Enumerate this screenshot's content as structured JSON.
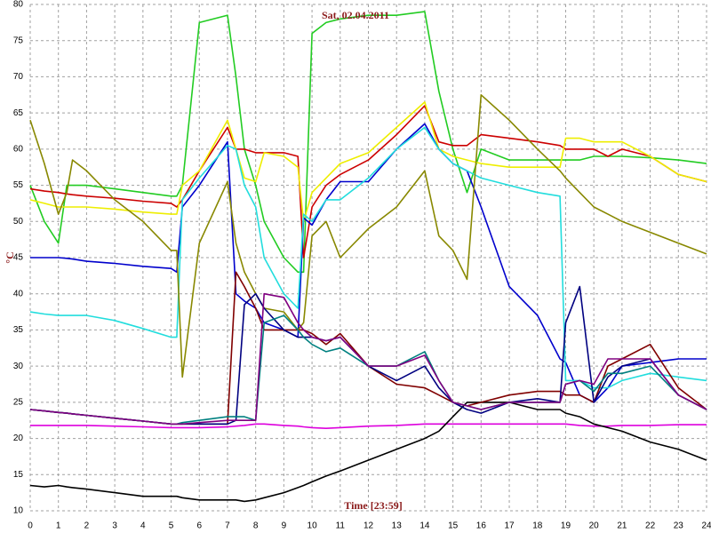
{
  "chart_data": {
    "type": "line",
    "title": "Sat, 02.04.2011",
    "x_label": "Time [23:59]",
    "y_label": "°C",
    "grid": true,
    "xlim": [
      0,
      24
    ],
    "xticks": [
      0,
      1,
      2,
      3,
      4,
      5,
      6,
      7,
      8,
      9,
      10,
      11,
      12,
      13,
      14,
      15,
      16,
      17,
      18,
      19,
      20,
      21,
      22,
      23,
      24
    ],
    "ylim": [
      10,
      80
    ],
    "yticks": [
      10,
      15,
      20,
      25,
      30,
      35,
      40,
      45,
      50,
      55,
      60,
      65,
      70,
      75,
      80
    ],
    "x": [
      0,
      0.5,
      1,
      1.3,
      1.5,
      2,
      3,
      4,
      5,
      5.2,
      5.4,
      6,
      7,
      7.3,
      7.6,
      8,
      8.3,
      9,
      9.5,
      9.7,
      10,
      10.5,
      11,
      12,
      13,
      14,
      14.5,
      15,
      15.5,
      16,
      17,
      18,
      18.8,
      19,
      19.5,
      20,
      20.5,
      21,
      22,
      23,
      24
    ],
    "series": [
      {
        "color": "#22cc22",
        "values": [
          55,
          50,
          47,
          55,
          55,
          55,
          54.5,
          54,
          53.5,
          53.5,
          55,
          77.5,
          78.5,
          70,
          60,
          55,
          50,
          45,
          43,
          43,
          76,
          77.5,
          78,
          78.5,
          78.5,
          79,
          68,
          60,
          54,
          60,
          58.5,
          58.5,
          58.5,
          58.5,
          58.5,
          59,
          59,
          59,
          58.8,
          58.5,
          58
        ]
      },
      {
        "color": "#cc0000",
        "values": [
          54.5,
          54.2,
          54,
          53.8,
          53.7,
          53.5,
          53.2,
          52.8,
          52.5,
          52,
          53,
          57,
          63,
          60,
          60,
          59.5,
          59.5,
          59.5,
          59,
          45,
          52,
          55,
          56.5,
          58.5,
          62,
          66,
          61,
          60.5,
          60.5,
          62,
          61.5,
          61,
          60.5,
          60,
          60,
          60,
          59,
          60,
          59,
          56.5,
          55.5
        ]
      },
      {
        "color": "#eeee00",
        "values": [
          53,
          52.5,
          52,
          52,
          52,
          52,
          51.7,
          51.3,
          51,
          51,
          55,
          57,
          64,
          60,
          56,
          55.5,
          59.5,
          59,
          57.5,
          50,
          54,
          56,
          58,
          59.5,
          63,
          66.5,
          60,
          59,
          58.5,
          58,
          57.5,
          57.5,
          57.5,
          61.5,
          61.5,
          61,
          61,
          61,
          59,
          56.5,
          55.5
        ]
      },
      {
        "color": "#0000cc",
        "values": [
          45,
          45,
          45,
          44.9,
          44.8,
          44.5,
          44.2,
          43.8,
          43.5,
          43,
          52,
          55,
          61,
          40,
          39,
          38,
          36,
          35,
          34,
          50.5,
          49.5,
          53,
          55.5,
          55.5,
          60,
          63.5,
          60,
          58,
          57,
          52,
          41,
          37,
          31,
          30.5,
          26,
          25,
          27,
          30,
          30.5,
          31,
          31
        ]
      },
      {
        "color": "#22dddd",
        "values": [
          37.5,
          37.2,
          37,
          37,
          37,
          37,
          36.3,
          35.2,
          34,
          34,
          53,
          56,
          60.5,
          60,
          55,
          52,
          45,
          40,
          38,
          51,
          50,
          53,
          53,
          56,
          60,
          63,
          60,
          58,
          57,
          56,
          55,
          54,
          53.5,
          28,
          28,
          27,
          27,
          28,
          29,
          28.5,
          28
        ]
      },
      {
        "color": "#888800",
        "values": [
          64,
          58,
          51,
          54,
          58.5,
          57,
          53,
          50,
          46,
          46,
          28.5,
          47,
          55.5,
          47,
          43,
          40,
          38,
          37.5,
          35,
          36,
          48,
          50,
          45,
          49,
          52,
          57,
          48,
          46,
          42,
          67.5,
          64,
          60,
          57,
          56,
          54,
          52,
          51,
          50,
          48.5,
          47,
          45.5
        ]
      },
      {
        "color": "#dd00dd",
        "values": [
          21.8,
          21.8,
          21.8,
          21.8,
          21.8,
          21.8,
          21.7,
          21.6,
          21.5,
          21.5,
          21.5,
          21.5,
          21.6,
          21.7,
          21.8,
          22,
          22,
          21.8,
          21.7,
          21.6,
          21.5,
          21.4,
          21.5,
          21.7,
          21.8,
          22,
          22,
          22,
          22,
          22,
          22,
          22,
          22,
          22,
          21.8,
          21.7,
          21.7,
          21.8,
          21.8,
          21.9,
          21.9
        ]
      },
      {
        "color": "#000000",
        "values": [
          13.5,
          13.3,
          13.5,
          13.3,
          13.2,
          13,
          12.5,
          12,
          12,
          12,
          11.8,
          11.5,
          11.5,
          11.5,
          11.3,
          11.5,
          11.8,
          12.5,
          13.2,
          13.5,
          14,
          14.8,
          15.5,
          17,
          18.5,
          20,
          21,
          23,
          25,
          25,
          25,
          24,
          24,
          23.5,
          23,
          22,
          21.5,
          21,
          19.5,
          18.5,
          17
        ]
      },
      {
        "color": "#800000",
        "values": [
          24,
          23.8,
          23.6,
          23.5,
          23.4,
          23.2,
          22.8,
          22.4,
          22,
          22,
          22,
          22,
          22,
          43,
          41,
          38,
          35,
          35,
          35,
          35,
          34.5,
          33,
          34.5,
          30,
          27.5,
          27,
          26,
          25,
          24.5,
          25,
          26,
          26.5,
          26.5,
          26,
          26,
          25,
          30,
          31,
          33,
          27,
          24
        ]
      },
      {
        "color": "#000080",
        "values": [
          24,
          23.8,
          23.6,
          23.5,
          23.4,
          23.2,
          22.8,
          22.4,
          22,
          22,
          22,
          22,
          22,
          22.5,
          38.5,
          40,
          38,
          35,
          34,
          34,
          34,
          33.5,
          34,
          30,
          28,
          30,
          27,
          25,
          24,
          23.5,
          25,
          25.5,
          25,
          36,
          41,
          25,
          28.5,
          30,
          31,
          26,
          24
        ]
      },
      {
        "color": "#008080",
        "values": [
          24,
          23.8,
          23.6,
          23.5,
          23.4,
          23.2,
          22.8,
          22.4,
          22,
          22,
          22.2,
          22.5,
          23,
          23,
          23,
          22.5,
          36,
          37,
          35,
          34,
          33,
          32,
          32.5,
          30,
          30,
          32,
          28,
          25,
          24.5,
          24,
          25,
          25,
          25,
          27.5,
          28,
          26.5,
          29,
          29,
          30,
          26,
          24
        ]
      },
      {
        "color": "#800080",
        "values": [
          24,
          23.8,
          23.6,
          23.5,
          23.4,
          23.2,
          22.8,
          22.4,
          22,
          22,
          22,
          22.2,
          22.5,
          22.5,
          22.5,
          22.5,
          40,
          39.5,
          36,
          35,
          34,
          33.5,
          34,
          30,
          30,
          31.5,
          28,
          25,
          24.5,
          24,
          25,
          25,
          25,
          27.5,
          28,
          27.5,
          31,
          31,
          31,
          26,
          24
        ]
      }
    ]
  }
}
